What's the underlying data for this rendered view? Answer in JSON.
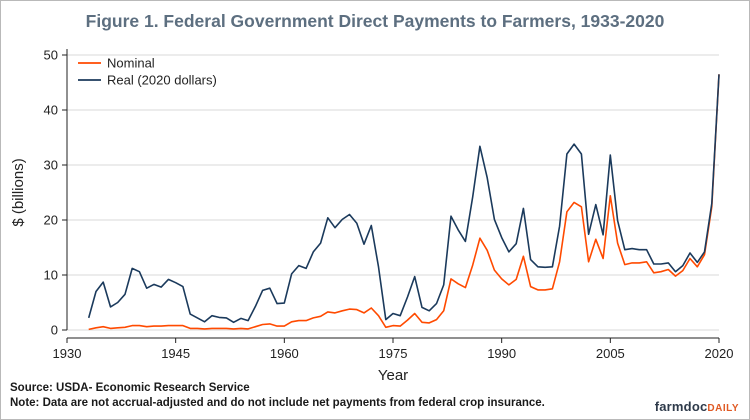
{
  "header": {
    "title": "Figure 1. Federal Government Direct Payments to Farmers, 1933-2020"
  },
  "footer": {
    "source": "Source: USDA- Economic Research Service",
    "note": "Note: Data are not accrual-adjusted and do not include net payments from federal crop insurance.",
    "logo_main": "farmdoc",
    "logo_sub": "DAILY"
  },
  "colors": {
    "nominal": "#ff4a00",
    "real": "#1b3a5c",
    "grid": "#d8d8d8",
    "title": "#5d6f80"
  },
  "chart_data": {
    "type": "line",
    "title": "Figure 1. Federal Government Direct Payments to Farmers, 1933-2020",
    "xlabel": "Year",
    "ylabel": "$ (billions)",
    "xlim": [
      1930,
      2020
    ],
    "ylim": [
      0,
      50
    ],
    "x_ticks": [
      1930,
      1945,
      1960,
      1975,
      1990,
      2005,
      2020
    ],
    "y_ticks": [
      0,
      10,
      20,
      30,
      40,
      50
    ],
    "grid": "horizontal",
    "legend_position": "top-left",
    "series": [
      {
        "name": "Nominal",
        "color": "#ff4a00",
        "points": [
          [
            1933,
            0.1
          ],
          [
            1934,
            0.4
          ],
          [
            1935,
            0.6
          ],
          [
            1936,
            0.3
          ],
          [
            1937,
            0.4
          ],
          [
            1938,
            0.5
          ],
          [
            1939,
            0.8
          ],
          [
            1940,
            0.8
          ],
          [
            1941,
            0.6
          ],
          [
            1942,
            0.7
          ],
          [
            1943,
            0.7
          ],
          [
            1944,
            0.8
          ],
          [
            1945,
            0.8
          ],
          [
            1946,
            0.8
          ],
          [
            1947,
            0.3
          ],
          [
            1948,
            0.3
          ],
          [
            1949,
            0.2
          ],
          [
            1950,
            0.3
          ],
          [
            1951,
            0.3
          ],
          [
            1952,
            0.3
          ],
          [
            1953,
            0.2
          ],
          [
            1954,
            0.3
          ],
          [
            1955,
            0.2
          ],
          [
            1956,
            0.6
          ],
          [
            1957,
            1.0
          ],
          [
            1958,
            1.1
          ],
          [
            1959,
            0.7
          ],
          [
            1960,
            0.7
          ],
          [
            1961,
            1.5
          ],
          [
            1962,
            1.7
          ],
          [
            1963,
            1.7
          ],
          [
            1964,
            2.2
          ],
          [
            1965,
            2.5
          ],
          [
            1966,
            3.3
          ],
          [
            1967,
            3.1
          ],
          [
            1968,
            3.5
          ],
          [
            1969,
            3.8
          ],
          [
            1970,
            3.7
          ],
          [
            1971,
            3.1
          ],
          [
            1972,
            4.0
          ],
          [
            1973,
            2.6
          ],
          [
            1974,
            0.5
          ],
          [
            1975,
            0.8
          ],
          [
            1976,
            0.7
          ],
          [
            1977,
            1.8
          ],
          [
            1978,
            3.0
          ],
          [
            1979,
            1.4
          ],
          [
            1980,
            1.3
          ],
          [
            1981,
            1.9
          ],
          [
            1982,
            3.5
          ],
          [
            1983,
            9.3
          ],
          [
            1984,
            8.4
          ],
          [
            1985,
            7.7
          ],
          [
            1986,
            11.8
          ],
          [
            1987,
            16.7
          ],
          [
            1988,
            14.5
          ],
          [
            1989,
            10.9
          ],
          [
            1990,
            9.3
          ],
          [
            1991,
            8.2
          ],
          [
            1992,
            9.2
          ],
          [
            1993,
            13.4
          ],
          [
            1994,
            7.9
          ],
          [
            1995,
            7.3
          ],
          [
            1996,
            7.3
          ],
          [
            1997,
            7.5
          ],
          [
            1998,
            12.4
          ],
          [
            1999,
            21.5
          ],
          [
            2000,
            23.2
          ],
          [
            2001,
            22.4
          ],
          [
            2002,
            12.4
          ],
          [
            2003,
            16.5
          ],
          [
            2004,
            13.0
          ],
          [
            2005,
            24.4
          ],
          [
            2006,
            15.8
          ],
          [
            2007,
            11.9
          ],
          [
            2008,
            12.2
          ],
          [
            2009,
            12.2
          ],
          [
            2010,
            12.4
          ],
          [
            2011,
            10.4
          ],
          [
            2012,
            10.6
          ],
          [
            2013,
            11.0
          ],
          [
            2014,
            9.8
          ],
          [
            2015,
            10.8
          ],
          [
            2016,
            13.0
          ],
          [
            2017,
            11.5
          ],
          [
            2018,
            13.7
          ],
          [
            2019,
            22.4
          ],
          [
            2020,
            46.5
          ]
        ]
      },
      {
        "name": "Real (2020 dollars)",
        "color": "#1b3a5c",
        "points": [
          [
            1933,
            2.2
          ],
          [
            1934,
            7.0
          ],
          [
            1935,
            8.7
          ],
          [
            1936,
            4.2
          ],
          [
            1937,
            5.0
          ],
          [
            1938,
            6.5
          ],
          [
            1939,
            11.2
          ],
          [
            1940,
            10.6
          ],
          [
            1941,
            7.6
          ],
          [
            1942,
            8.3
          ],
          [
            1943,
            7.8
          ],
          [
            1944,
            9.2
          ],
          [
            1945,
            8.6
          ],
          [
            1946,
            7.9
          ],
          [
            1947,
            2.9
          ],
          [
            1948,
            2.2
          ],
          [
            1949,
            1.5
          ],
          [
            1950,
            2.6
          ],
          [
            1951,
            2.3
          ],
          [
            1952,
            2.2
          ],
          [
            1953,
            1.4
          ],
          [
            1954,
            2.1
          ],
          [
            1955,
            1.7
          ],
          [
            1956,
            4.3
          ],
          [
            1957,
            7.2
          ],
          [
            1958,
            7.6
          ],
          [
            1959,
            4.8
          ],
          [
            1960,
            4.9
          ],
          [
            1961,
            10.2
          ],
          [
            1962,
            11.7
          ],
          [
            1963,
            11.2
          ],
          [
            1964,
            14.2
          ],
          [
            1965,
            15.8
          ],
          [
            1966,
            20.4
          ],
          [
            1967,
            18.6
          ],
          [
            1968,
            20.1
          ],
          [
            1969,
            21.0
          ],
          [
            1970,
            19.4
          ],
          [
            1971,
            15.6
          ],
          [
            1972,
            19.0
          ],
          [
            1973,
            11.5
          ],
          [
            1974,
            1.9
          ],
          [
            1975,
            3.0
          ],
          [
            1976,
            2.6
          ],
          [
            1977,
            6.0
          ],
          [
            1978,
            9.7
          ],
          [
            1979,
            4.1
          ],
          [
            1980,
            3.5
          ],
          [
            1981,
            4.8
          ],
          [
            1982,
            8.2
          ],
          [
            1983,
            20.7
          ],
          [
            1984,
            18.2
          ],
          [
            1985,
            16.1
          ],
          [
            1986,
            24.2
          ],
          [
            1987,
            33.4
          ],
          [
            1988,
            27.7
          ],
          [
            1989,
            20.1
          ],
          [
            1990,
            16.8
          ],
          [
            1991,
            14.2
          ],
          [
            1992,
            15.7
          ],
          [
            1993,
            22.1
          ],
          [
            1994,
            12.8
          ],
          [
            1995,
            11.5
          ],
          [
            1996,
            11.4
          ],
          [
            1997,
            11.5
          ],
          [
            1998,
            18.9
          ],
          [
            1999,
            32.0
          ],
          [
            2000,
            33.8
          ],
          [
            2001,
            32.0
          ],
          [
            2002,
            17.4
          ],
          [
            2003,
            22.8
          ],
          [
            2004,
            17.3
          ],
          [
            2005,
            31.8
          ],
          [
            2006,
            19.9
          ],
          [
            2007,
            14.6
          ],
          [
            2008,
            14.8
          ],
          [
            2009,
            14.6
          ],
          [
            2010,
            14.6
          ],
          [
            2011,
            12.0
          ],
          [
            2012,
            12.0
          ],
          [
            2013,
            12.2
          ],
          [
            2014,
            10.6
          ],
          [
            2015,
            11.7
          ],
          [
            2016,
            14.0
          ],
          [
            2017,
            12.3
          ],
          [
            2018,
            14.2
          ],
          [
            2019,
            23.0
          ],
          [
            2020,
            46.5
          ]
        ]
      }
    ]
  }
}
